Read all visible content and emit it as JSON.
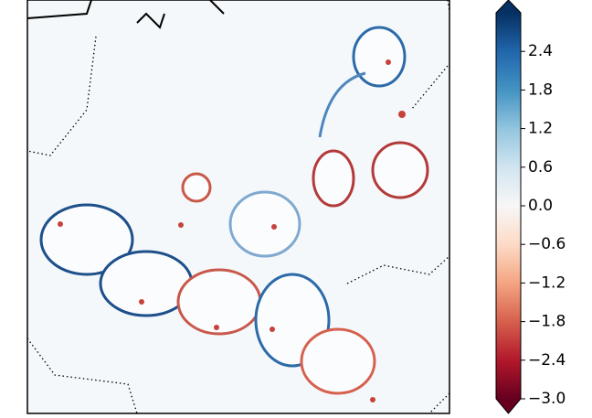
{
  "chart_data": {
    "type": "colorbar",
    "clim": [
      -3.0,
      3.0
    ],
    "extend": "both",
    "colors": [
      "#67001f",
      "#b2182b",
      "#d6604d",
      "#f4a582",
      "#fddbc7",
      "#f7f7f7",
      "#d1e5f0",
      "#92c5de",
      "#4393c3",
      "#2166ac",
      "#053061"
    ],
    "ticks": [
      2.4,
      1.8,
      1.2,
      0.6,
      {
        "value": 0,
        "label": "0.0"
      },
      {
        "value": -0.6,
        "label": "−0.6"
      },
      {
        "value": -1.2,
        "label": "−1.2"
      },
      {
        "value": -1.8,
        "label": "−1.8"
      },
      {
        "value": -2.4,
        "label": "−2.4"
      },
      {
        "value": -3.0,
        "label": "−3.0"
      }
    ]
  }
}
